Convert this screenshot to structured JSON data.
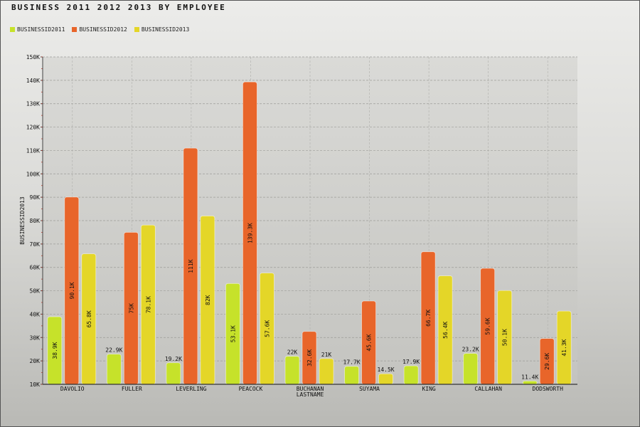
{
  "chart_data": {
    "type": "bar",
    "title": "BUSINESS 2011 2012 2013 BY  EMPLOYEE",
    "xlabel": "",
    "ylabel": "BUSINESSID2013",
    "ylim": [
      10000,
      150000
    ],
    "yticks": [
      10000,
      20000,
      30000,
      40000,
      50000,
      60000,
      70000,
      80000,
      90000,
      100000,
      110000,
      120000,
      130000,
      140000,
      150000
    ],
    "ytick_labels": [
      "10K",
      "20K",
      "30K",
      "40K",
      "50K",
      "60K",
      "70K",
      "80K",
      "90K",
      "100K",
      "110K",
      "120K",
      "130K",
      "140K",
      "150K"
    ],
    "grid": true,
    "legend_position": "top-left",
    "categories": [
      [
        "DAVOLIO"
      ],
      [
        "FULLER"
      ],
      [
        "LEVERLING"
      ],
      [
        "PEACOCK"
      ],
      [
        "BUCHANAN",
        "LASTNAME"
      ],
      [
        "SUYAMA"
      ],
      [
        "KING"
      ],
      [
        "CALLAHAN"
      ],
      [
        "DODSWORTH"
      ]
    ],
    "series": [
      {
        "name": "BUSINESSID2011",
        "color": "#c6e22a",
        "values": [
          38900,
          22900,
          19200,
          53100,
          22000,
          17700,
          17900,
          23200,
          11400
        ],
        "labels": [
          "38.9K",
          "22.9K",
          "19.2K",
          "53.1K",
          "22K",
          "17.7K",
          "17.9K",
          "23.2K",
          "11.4K"
        ]
      },
      {
        "name": "BUSINESSID2012",
        "color": "#e8652a",
        "values": [
          90100,
          75000,
          111000,
          139300,
          32600,
          45600,
          66700,
          59600,
          29600
        ],
        "labels": [
          "90.1K",
          "75K",
          "111K",
          "139.3K",
          "32.6K",
          "45.6K",
          "66.7K",
          "59.6K",
          "29.6K"
        ]
      },
      {
        "name": "BUSINESSID2013",
        "color": "#e4d628",
        "values": [
          65800,
          78100,
          82000,
          57600,
          21000,
          14500,
          56400,
          50100,
          41300
        ],
        "labels": [
          "65.8K",
          "78.1K",
          "82K",
          "57.6K",
          "21K",
          "14.5K",
          "56.4K",
          "50.1K",
          "41.3K"
        ]
      }
    ]
  }
}
